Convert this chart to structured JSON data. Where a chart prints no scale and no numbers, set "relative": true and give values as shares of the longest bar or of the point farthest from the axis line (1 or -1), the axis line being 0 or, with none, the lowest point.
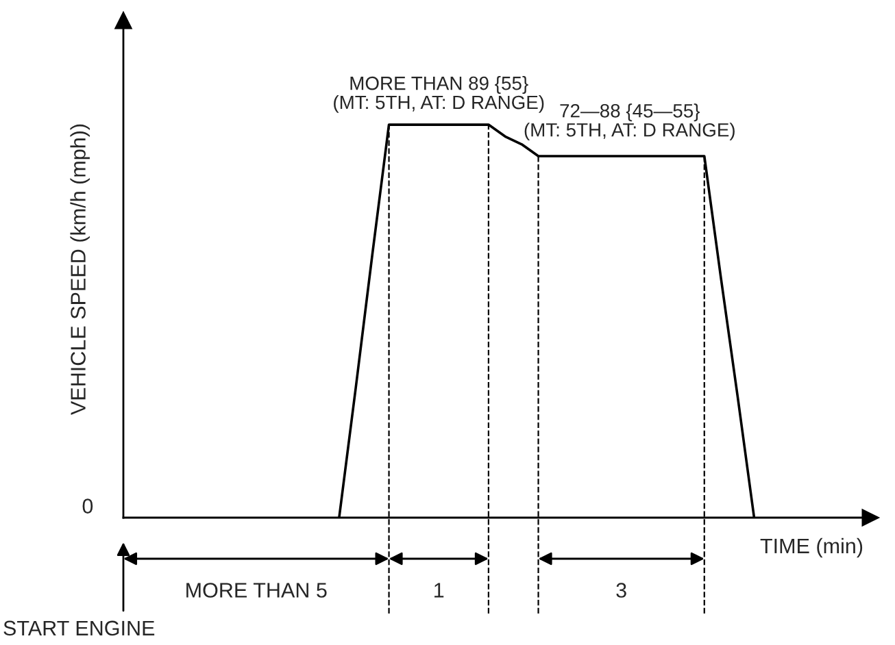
{
  "chart_data": {
    "type": "line",
    "relative": true,
    "xlabel": "TIME (min)",
    "ylabel": "VEHICLE SPEED (km/h (mph))",
    "categories": [
      null,
      null,
      null,
      null,
      null,
      null,
      null,
      null,
      null,
      null,
      null,
      null,
      null,
      null,
      null,
      null,
      null,
      null,
      null,
      null,
      null,
      null,
      null,
      null,
      null,
      null,
      null,
      null,
      null,
      null,
      null,
      null,
      null,
      null,
      null,
      null,
      null,
      null,
      null,
      null,
      null,
      null,
      null,
      null,
      null
    ],
    "series": [
      {
        "color": "#000000",
        "values": [
          null,
          null,
          null,
          null,
          null,
          null,
          null,
          null,
          null,
          null,
          null,
          null,
          null,
          0,
          0.33,
          0.67,
          1,
          1,
          1,
          1,
          1,
          1,
          1,
          0.97,
          0.95,
          0.92,
          0.92,
          0.92,
          0.92,
          0.92,
          0.92,
          0.92,
          0.92,
          0.92,
          0.92,
          0.92,
          0.61,
          0.31,
          0,
          null,
          null,
          null,
          null,
          null,
          null
        ]
      }
    ],
    "annotations": [
      "MORE THAN 89 {55}\n(MT: 5TH, AT: D RANGE)",
      "72—88 {45—55}\n(MT: 5TH, AT: D RANGE)",
      "MORE THAN 5",
      "1",
      "3",
      "START ENGINE",
      "0"
    ],
    "grid": "x",
    "marker": "none",
    "line_style": "solid"
  }
}
